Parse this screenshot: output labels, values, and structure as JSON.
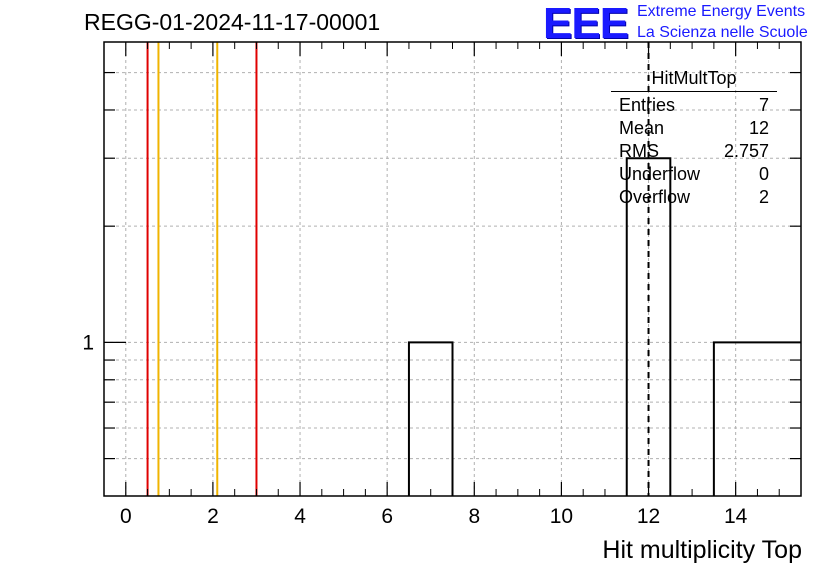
{
  "header": {
    "title": "REGG-01-2024-11-17-00001",
    "logo_text": "EEE",
    "logo_line1": "Extreme Energy Events",
    "logo_line2": "La Scienza nelle Scuole"
  },
  "stats_box": {
    "title": "HitMultTop",
    "rows": [
      {
        "label": "Entries",
        "value": "7"
      },
      {
        "label": "Mean",
        "value": "12"
      },
      {
        "label": "RMS",
        "value": "2.757"
      },
      {
        "label": "Underflow",
        "value": "0"
      },
      {
        "label": "Overflow",
        "value": "2"
      }
    ]
  },
  "chart_data": {
    "type": "bar",
    "histogram": "step",
    "title": "REGG-01-2024-11-17-00001",
    "xlabel": "Hit multiplicity Top",
    "ylabel": "",
    "xlim": [
      -0.5,
      15.5
    ],
    "ylim_log": true,
    "xticks": [
      0,
      2,
      4,
      6,
      8,
      10,
      12,
      14
    ],
    "yticks": [
      1
    ],
    "grid": true,
    "bins": [
      {
        "x0": 6.5,
        "x1": 7.5,
        "count": 1
      },
      {
        "x0": 11.5,
        "x1": 12.5,
        "count": 3
      },
      {
        "x0": 13.5,
        "x1": 15.5,
        "count": 1
      }
    ],
    "vertical_lines": [
      {
        "x": 0.5,
        "color": "#e00000"
      },
      {
        "x": 0.75,
        "color": "#f0b400"
      },
      {
        "x": 2.1,
        "color": "#f0b400"
      },
      {
        "x": 3.0,
        "color": "#e00000"
      }
    ],
    "mean_line": {
      "x": 12,
      "style": "dashed",
      "color": "#000000"
    }
  }
}
